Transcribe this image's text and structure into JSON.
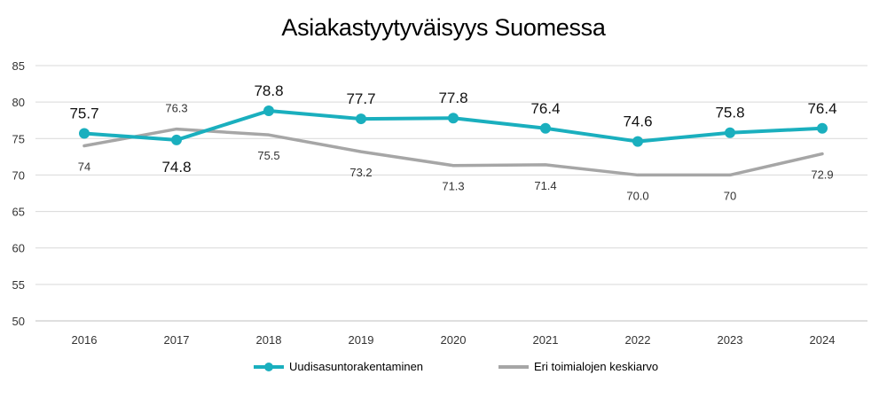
{
  "chart_data": {
    "type": "line",
    "title": "Asiakastyytyväisyys Suomessa",
    "xlabel": "",
    "ylabel": "",
    "categories": [
      "2016",
      "2017",
      "2018",
      "2019",
      "2020",
      "2021",
      "2022",
      "2023",
      "2024"
    ],
    "ylim": [
      50,
      85
    ],
    "yticks": [
      50,
      55,
      60,
      65,
      70,
      75,
      80,
      85
    ],
    "grid": true,
    "legend_position": "bottom",
    "series": [
      {
        "name": "Uudisasuntorakentaminen",
        "color": "#1aafbe",
        "markers": true,
        "values": [
          75.7,
          74.8,
          78.8,
          77.7,
          77.8,
          76.4,
          74.6,
          75.8,
          76.4
        ],
        "labels": [
          "75.7",
          "74.8",
          "78.8",
          "77.7",
          "77.8",
          "76.4",
          "74.6",
          "75.8",
          "76.4"
        ]
      },
      {
        "name": "Eri toimialojen keskiarvo",
        "color": "#a6a6a6",
        "markers": false,
        "values": [
          74,
          76.3,
          75.5,
          73.2,
          71.3,
          71.4,
          70.0,
          70,
          72.9
        ],
        "labels": [
          "74",
          "76.3",
          "75.5",
          "73.2",
          "71.3",
          "71.4",
          "70.0",
          "70",
          "72.9"
        ]
      }
    ]
  }
}
